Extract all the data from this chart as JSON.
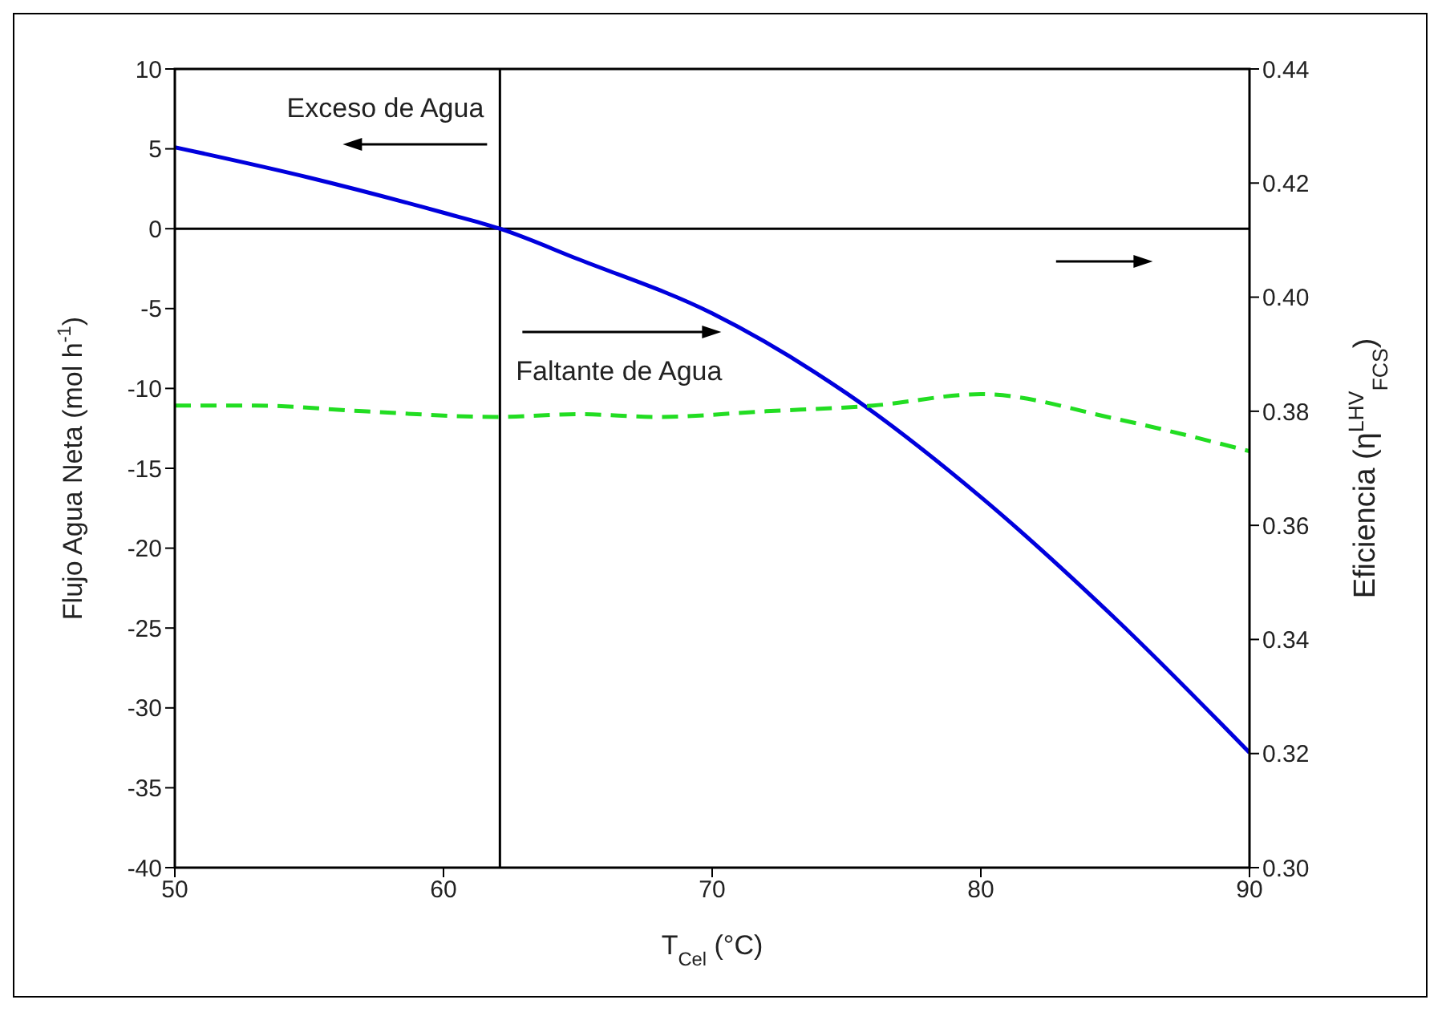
{
  "chart_data": {
    "type": "line",
    "xlabel": "T$_{Cel}$ (°C)",
    "ylabel": "Flujo Agua Neta (mol h$^{-1}$)",
    "y2label": "Eficiencia (η$^{LHV}$$_{FCS}$)",
    "xlim": [
      50,
      90
    ],
    "xticks": [
      50,
      60,
      70,
      80,
      90
    ],
    "ylim": [
      -40,
      10
    ],
    "yticks": [
      -40,
      -35,
      -30,
      -25,
      -20,
      -15,
      -10,
      -5,
      0,
      5,
      10
    ],
    "y2lim": [
      0.3,
      0.44
    ],
    "y2ticks": [
      {
        "value": 0.3,
        "label": "0.30"
      },
      {
        "value": 0.32,
        "label": "0.32"
      },
      {
        "value": 0.34,
        "label": "0.34"
      },
      {
        "value": 0.36,
        "label": "0.36"
      },
      {
        "value": 0.38,
        "label": "0.38"
      },
      {
        "value": 0.4,
        "label": "0.40"
      },
      {
        "value": 0.42,
        "label": "0.42"
      },
      {
        "value": 0.44,
        "label": "0.44"
      }
    ],
    "series": [
      {
        "color": "#0000dd",
        "line_style": "solid",
        "x": [
          50,
          55,
          60,
          62.1,
          65,
          70,
          75,
          80,
          85,
          90
        ],
        "values": [
          5.1,
          3.2,
          1.0,
          0,
          -1.9,
          -5.3,
          -10.3,
          -16.8,
          -24.4,
          -32.8
        ]
      },
      {
        "color": "#22dd22",
        "line_style": "dashed",
        "axis": "y2",
        "x": [
          50,
          53,
          57,
          62,
          65,
          68,
          72,
          76,
          80,
          85,
          90
        ],
        "values": [
          0.381,
          0.381,
          0.38,
          0.379,
          0.3795,
          0.379,
          0.38,
          0.381,
          0.383,
          0.3787,
          0.373
        ]
      }
    ],
    "ref_lines": [
      {
        "axis": "x",
        "value": 62.1,
        "color": "#000000"
      },
      {
        "axis": "y",
        "value": 0,
        "color": "#000000"
      }
    ],
    "annotations": [
      "Exceso de Agua",
      "Faltante de Agua"
    ],
    "marker": "none"
  }
}
